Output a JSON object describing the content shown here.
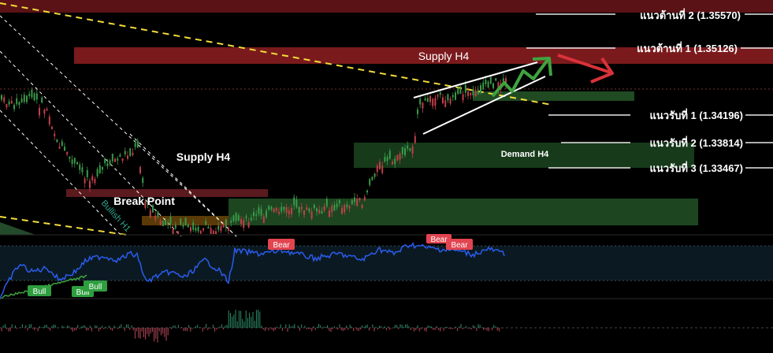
{
  "chart_data": {
    "type": "line",
    "instrument_view": "price chart with zones, RSI-style oscillator and histogram",
    "levels": {
      "resistance": [
        {
          "label": "แนวต้านที่ 2 (1.35570)",
          "price": 1.3557
        },
        {
          "label": "แนวต้านที่ 1 (1.35126)",
          "price": 1.35126
        }
      ],
      "support": [
        {
          "label": "แนวรับที่ 1 (1.34196)",
          "price": 1.34196
        },
        {
          "label": "แนวรับที่ 2 (1.33814)",
          "price": 1.33814
        },
        {
          "label": "แนวรับที่ 3 (1.33467)",
          "price": 1.33467
        }
      ]
    },
    "zones": {
      "supply_h4_top": "Supply H4",
      "supply_h4_left": "Supply H4",
      "demand_h4": "Demand H4",
      "break_point": "Break Point",
      "bullish_channel": "Bullish H1"
    },
    "oscillator_signals": {
      "bear": [
        "Bear",
        "Bear",
        "Bear"
      ],
      "bull": [
        "Bull",
        "Bull",
        "Bull"
      ]
    },
    "colors": {
      "background": "#000000",
      "supply": "#7a1a1c",
      "demand": "#1f4a22",
      "oscillator_line": "#2a5cf0",
      "arrow_up": "#3fa33f",
      "arrow_down": "#d9323a",
      "trend_yellow": "#f2dc3a",
      "bear_badge": "#e24450",
      "bull_badge": "#2e9e3e"
    }
  }
}
